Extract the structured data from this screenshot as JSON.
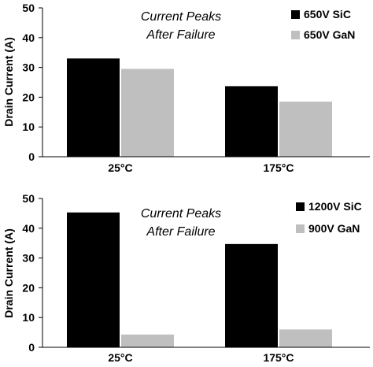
{
  "chart_data": [
    {
      "type": "bar",
      "categories": [
        "25°C",
        "175°C"
      ],
      "series": [
        {
          "name": "650V SiC",
          "values": [
            33,
            23.7
          ],
          "color": "#000000"
        },
        {
          "name": "650V GaN",
          "values": [
            29.5,
            18.5
          ],
          "color": "#bfbfbf"
        }
      ],
      "ylabel": "Drain Current (A)",
      "ylim": [
        0,
        50
      ],
      "yticks": [
        0,
        10,
        20,
        30,
        40,
        50
      ],
      "annotation": [
        "Current Peaks",
        "After Failure"
      ],
      "legend": "top-right",
      "grid": false
    },
    {
      "type": "bar",
      "categories": [
        "25°C",
        "175°C"
      ],
      "series": [
        {
          "name": "1200V SiC",
          "values": [
            45.3,
            34.7
          ],
          "color": "#000000"
        },
        {
          "name": "900V GaN",
          "values": [
            4.3,
            6
          ],
          "color": "#bfbfbf"
        }
      ],
      "ylabel": "Drain Current (A)",
      "ylim": [
        0,
        50
      ],
      "yticks": [
        0,
        10,
        20,
        30,
        40,
        50
      ],
      "annotation": [
        "Current Peaks",
        "After Failure"
      ],
      "legend": "top-right",
      "grid": false
    }
  ]
}
